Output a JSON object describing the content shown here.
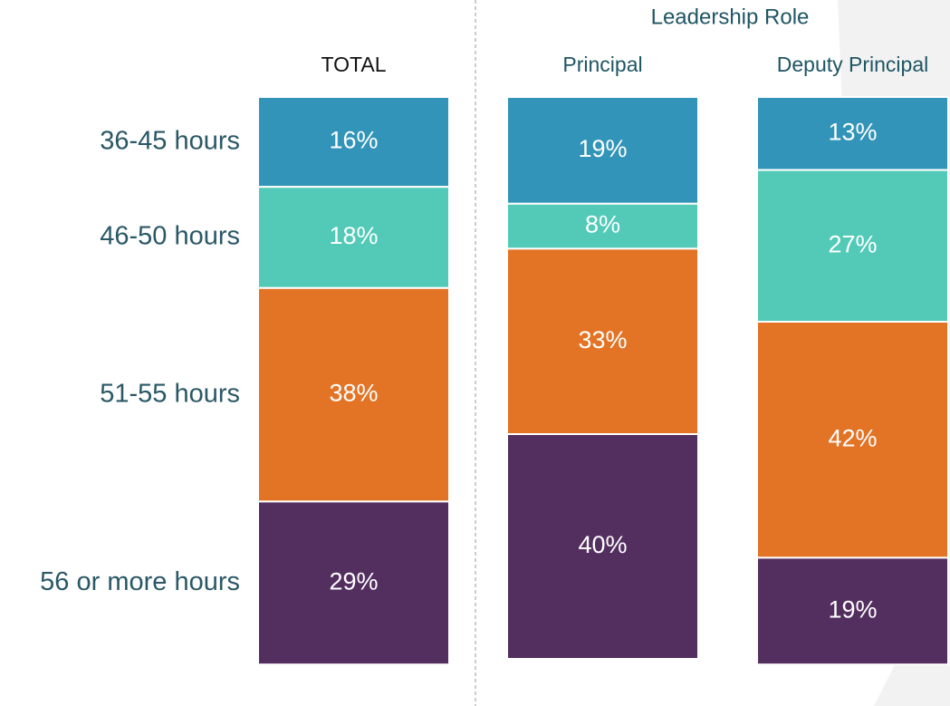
{
  "chart_data": {
    "type": "stacked_bar",
    "group_label": "Leadership Role",
    "categories": [
      "TOTAL",
      "Principal",
      "Deputy Principal"
    ],
    "series": [
      {
        "name": "36-45 hours",
        "color": "#3294b8",
        "values": [
          16,
          19,
          13
        ],
        "value_labels": [
          "16%",
          "19%",
          "13%"
        ]
      },
      {
        "name": "46-50 hours",
        "color": "#52cab7",
        "values": [
          18,
          8,
          27
        ],
        "value_labels": [
          "18%",
          "8%",
          "27%"
        ]
      },
      {
        "name": "51-55 hours",
        "color": "#e37325",
        "values": [
          38,
          33,
          42
        ],
        "value_labels": [
          "38%",
          "33%",
          "42%"
        ]
      },
      {
        "name": "56 or more hours",
        "color": "#532f60",
        "values": [
          29,
          40,
          19
        ],
        "value_labels": [
          "29%",
          "40%",
          "19%"
        ]
      }
    ]
  }
}
